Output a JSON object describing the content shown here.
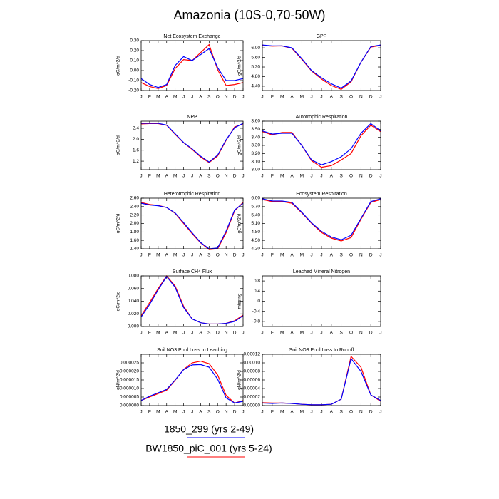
{
  "title": "Amazonia (10S-0,70-50W)",
  "chart_data": [
    {
      "type": "line",
      "title": "Net Ecosystem Exchange",
      "ylabel": "gC/m^2/d",
      "categories": [
        "J",
        "F",
        "M",
        "A",
        "M",
        "J",
        "J",
        "A",
        "S",
        "O",
        "N",
        "D",
        "J"
      ],
      "ylim": [
        -0.2,
        0.3
      ],
      "yticks": [
        {
          "value": -0.2,
          "label": "-0.20"
        },
        {
          "value": -0.1,
          "label": "-0.10"
        },
        {
          "value": 0,
          "label": "0.00"
        },
        {
          "value": 0.1,
          "label": "0.10"
        },
        {
          "value": 0.2,
          "label": "0.20"
        },
        {
          "value": 0.3,
          "label": "0.30"
        }
      ],
      "series": [
        {
          "name": "1850_299 (yrs 2-49)",
          "color": "#0000ff",
          "values": [
            -0.08,
            -0.14,
            -0.17,
            -0.14,
            0.05,
            0.14,
            0.1,
            0.16,
            0.22,
            0.03,
            -0.1,
            -0.1,
            -0.08
          ]
        },
        {
          "name": "BW1850_piC_001 (yrs 5-24)",
          "color": "#ff0000",
          "values": [
            -0.12,
            -0.16,
            -0.18,
            -0.15,
            0.02,
            0.11,
            0.1,
            0.18,
            0.26,
            0.01,
            -0.15,
            -0.14,
            -0.12
          ]
        }
      ]
    },
    {
      "type": "line",
      "title": "GPP",
      "ylabel": "gC/m^2/d",
      "categories": [
        "J",
        "F",
        "M",
        "A",
        "M",
        "J",
        "J",
        "A",
        "S",
        "O",
        "N",
        "D",
        "J"
      ],
      "ylim": [
        4.22,
        6.3
      ],
      "yticks": [
        {
          "value": 4.4,
          "label": "4.40"
        },
        {
          "value": 4.8,
          "label": "4.80"
        },
        {
          "value": 5.2,
          "label": "5.20"
        },
        {
          "value": 5.6,
          "label": "5.60"
        },
        {
          "value": 6,
          "label": "6.00"
        }
      ],
      "series": [
        {
          "name": "1850_299 (yrs 2-49)",
          "color": "#0000ff",
          "values": [
            6.12,
            6.08,
            6.08,
            6.0,
            5.55,
            5.05,
            4.75,
            4.5,
            4.32,
            4.62,
            5.4,
            6.05,
            6.12
          ]
        },
        {
          "name": "BW1850_piC_001 (yrs 5-24)",
          "color": "#ff0000",
          "values": [
            6.1,
            6.07,
            6.08,
            5.98,
            5.52,
            5.03,
            4.7,
            4.43,
            4.27,
            4.58,
            5.4,
            6.03,
            6.1
          ]
        }
      ]
    },
    {
      "type": "line",
      "title": "NPP",
      "ylabel": "gC/m^2/d",
      "categories": [
        "J",
        "F",
        "M",
        "A",
        "M",
        "J",
        "J",
        "A",
        "S",
        "O",
        "N",
        "D",
        "J"
      ],
      "ylim": [
        0.89,
        2.66
      ],
      "yticks": [
        1.2,
        1.6,
        {
          "value": 2,
          "label": "2.0"
        },
        2.4
      ],
      "series": [
        {
          "name": "1850_299 (yrs 2-49)",
          "color": "#0000ff",
          "values": [
            2.58,
            2.58,
            2.58,
            2.52,
            2.2,
            1.88,
            1.65,
            1.38,
            1.17,
            1.42,
            1.98,
            2.42,
            2.58
          ]
        },
        {
          "name": "BW1850_piC_001 (yrs 5-24)",
          "color": "#ff0000",
          "values": [
            2.56,
            2.57,
            2.57,
            2.51,
            2.18,
            1.87,
            1.63,
            1.35,
            1.15,
            1.39,
            1.96,
            2.45,
            2.56
          ]
        }
      ]
    },
    {
      "type": "line",
      "title": "Autotrophic Respiration",
      "ylabel": "gC/m^2/d",
      "categories": [
        "J",
        "F",
        "M",
        "A",
        "M",
        "J",
        "J",
        "A",
        "S",
        "O",
        "N",
        "D",
        "J"
      ],
      "ylim": [
        3.0,
        3.6
      ],
      "yticks": [
        {
          "value": 3,
          "label": "3.00"
        },
        {
          "value": 3.1,
          "label": "3.10"
        },
        {
          "value": 3.2,
          "label": "3.20"
        },
        {
          "value": 3.3,
          "label": "3.30"
        },
        {
          "value": 3.4,
          "label": "3.40"
        },
        {
          "value": 3.5,
          "label": "3.50"
        },
        {
          "value": 3.6,
          "label": "3.60"
        }
      ],
      "series": [
        {
          "name": "1850_299 (yrs 2-49)",
          "color": "#0000ff",
          "values": [
            3.48,
            3.44,
            3.45,
            3.45,
            3.3,
            3.12,
            3.06,
            3.1,
            3.16,
            3.26,
            3.45,
            3.57,
            3.48
          ]
        },
        {
          "name": "BW1850_piC_001 (yrs 5-24)",
          "color": "#ff0000",
          "values": [
            3.47,
            3.43,
            3.46,
            3.46,
            3.3,
            3.11,
            3.03,
            3.05,
            3.12,
            3.2,
            3.42,
            3.55,
            3.47
          ]
        }
      ]
    },
    {
      "type": "line",
      "title": "Heterotrophic Respiration",
      "ylabel": "gC/m^2/d",
      "categories": [
        "J",
        "F",
        "M",
        "A",
        "M",
        "J",
        "J",
        "A",
        "S",
        "O",
        "N",
        "D",
        "J"
      ],
      "ylim": [
        1.4,
        2.6
      ],
      "yticks": [
        {
          "value": 1.4,
          "label": "1.40"
        },
        {
          "value": 1.6,
          "label": "1.60"
        },
        {
          "value": 1.8,
          "label": "1.80"
        },
        {
          "value": 2,
          "label": "2.00"
        },
        {
          "value": 2.2,
          "label": "2.20"
        },
        {
          "value": 2.4,
          "label": "2.40"
        },
        {
          "value": 2.6,
          "label": "2.60"
        }
      ],
      "series": [
        {
          "name": "1850_299 (yrs 2-49)",
          "color": "#0000ff",
          "values": [
            2.48,
            2.44,
            2.42,
            2.38,
            2.25,
            2.02,
            1.78,
            1.55,
            1.4,
            1.42,
            1.82,
            2.32,
            2.48
          ]
        },
        {
          "name": "BW1850_piC_001 (yrs 5-24)",
          "color": "#ff0000",
          "values": [
            2.5,
            2.45,
            2.43,
            2.38,
            2.24,
            2.0,
            1.76,
            1.54,
            1.38,
            1.4,
            1.78,
            2.3,
            2.5
          ]
        }
      ]
    },
    {
      "type": "line",
      "title": "Ecosystem Respiration",
      "ylabel": "gC/m^2/d",
      "categories": [
        "J",
        "F",
        "M",
        "A",
        "M",
        "J",
        "J",
        "A",
        "S",
        "O",
        "N",
        "D",
        "J"
      ],
      "ylim": [
        4.2,
        6.0
      ],
      "yticks": [
        {
          "value": 4.2,
          "label": "4.20"
        },
        {
          "value": 4.5,
          "label": "4.50"
        },
        {
          "value": 4.8,
          "label": "4.80"
        },
        {
          "value": 5.1,
          "label": "5.10"
        },
        {
          "value": 5.4,
          "label": "5.40"
        },
        {
          "value": 5.7,
          "label": "5.70"
        },
        {
          "value": 6,
          "label": "6.00"
        }
      ],
      "series": [
        {
          "name": "1850_299 (yrs 2-49)",
          "color": "#0000ff",
          "values": [
            5.98,
            5.9,
            5.9,
            5.85,
            5.5,
            5.12,
            4.82,
            4.62,
            4.52,
            4.68,
            5.28,
            5.88,
            5.98
          ]
        },
        {
          "name": "BW1850_piC_001 (yrs 5-24)",
          "color": "#ff0000",
          "values": [
            5.95,
            5.88,
            5.88,
            5.82,
            5.48,
            5.1,
            4.78,
            4.58,
            4.48,
            4.6,
            5.25,
            5.85,
            5.95
          ]
        }
      ]
    },
    {
      "type": "line",
      "title": "Surface CH4 Flux",
      "ylabel": "gC/m^2/d",
      "categories": [
        "J",
        "F",
        "M",
        "A",
        "M",
        "J",
        "J",
        "A",
        "S",
        "O",
        "N",
        "D",
        "J"
      ],
      "ylim": [
        0,
        0.08
      ],
      "yticks": [
        {
          "value": 0,
          "label": "0.000"
        },
        {
          "value": 0.02,
          "label": "0.020"
        },
        {
          "value": 0.04,
          "label": "0.040"
        },
        {
          "value": 0.06,
          "label": "0.060"
        },
        {
          "value": 0.08,
          "label": "0.080"
        }
      ],
      "series": [
        {
          "name": "1850_299 (yrs 2-49)",
          "color": "#0000ff",
          "values": [
            0.015,
            0.035,
            0.058,
            0.079,
            0.062,
            0.03,
            0.012,
            0.006,
            0.004,
            0.004,
            0.005,
            0.008,
            0.017
          ]
        },
        {
          "name": "BW1850_piC_001 (yrs 5-24)",
          "color": "#ff0000",
          "values": [
            0.017,
            0.038,
            0.06,
            0.08,
            0.064,
            0.032,
            0.012,
            0.006,
            0.004,
            0.004,
            0.005,
            0.009,
            0.018
          ]
        }
      ]
    },
    {
      "type": "line",
      "title": "Leached Mineral Nitrogen",
      "ylabel": "missing",
      "categories": [
        "J",
        "F",
        "M",
        "A",
        "M",
        "J",
        "J",
        "A",
        "S",
        "O",
        "N",
        "D",
        "J"
      ],
      "ylim": [
        -1,
        1
      ],
      "yticks": [
        -0.8,
        -0.4,
        0,
        0.4,
        0.8
      ],
      "series": []
    },
    {
      "type": "line",
      "title": "Soil NO3 Pool Loss to Leaching",
      "ylabel": "gN/m^2/d",
      "categories": [
        "J",
        "F",
        "M",
        "A",
        "M",
        "J",
        "J",
        "A",
        "S",
        "O",
        "N",
        "D",
        "J"
      ],
      "ylim": [
        0,
        3e-05
      ],
      "yticks": [
        {
          "value": 0,
          "label": "0.000000"
        },
        {
          "value": 5e-06,
          "label": "0.000005"
        },
        {
          "value": 1e-05,
          "label": "0.000010"
        },
        {
          "value": 1.5e-05,
          "label": "0.000015"
        },
        {
          "value": 2e-05,
          "label": "0.000020"
        },
        {
          "value": 2.5e-05,
          "label": "0.000025"
        }
      ],
      "series": [
        {
          "name": "1850_299 (yrs 2-49)",
          "color": "#0000ff",
          "values": [
            3e-06,
            5.5e-06,
            7.5e-06,
            9.5e-06,
            1.5e-05,
            2.1e-05,
            2.38e-05,
            2.4e-05,
            2.25e-05,
            1.55e-05,
            4.5e-06,
            1.5e-06,
            2.5e-06
          ]
        },
        {
          "name": "BW1850_piC_001 (yrs 5-24)",
          "color": "#ff0000",
          "values": [
            3e-06,
            5e-06,
            7e-06,
            9e-06,
            1.48e-05,
            2.12e-05,
            2.5e-05,
            2.6e-05,
            2.45e-05,
            1.8e-05,
            6e-06,
            1.5e-06,
            3e-06
          ]
        }
      ]
    },
    {
      "type": "line",
      "title": "Soil NO3 Pool Loss to Runoff",
      "ylabel": "gN/m^2/d",
      "categories": [
        "J",
        "F",
        "M",
        "A",
        "M",
        "J",
        "J",
        "A",
        "S",
        "O",
        "N",
        "D",
        "J"
      ],
      "ylim": [
        0,
        0.00012
      ],
      "yticks": [
        {
          "value": 0,
          "label": "0.00000"
        },
        {
          "value": 2e-05,
          "label": "0.00002"
        },
        {
          "value": 4e-05,
          "label": "0.00004"
        },
        {
          "value": 6e-05,
          "label": "0.00006"
        },
        {
          "value": 8e-05,
          "label": "0.00008"
        },
        {
          "value": 0.0001,
          "label": "0.00010"
        },
        {
          "value": 0.00012,
          "label": "0.00012"
        }
      ],
      "series": [
        {
          "name": "1850_299 (yrs 2-49)",
          "color": "#0000ff",
          "values": [
            6e-06,
            5e-06,
            6e-06,
            5e-06,
            3e-06,
            2e-06,
            2e-06,
            3e-06,
            1.5e-05,
            0.00011,
            8e-05,
            2.5e-05,
            1.2e-05
          ]
        },
        {
          "name": "BW1850_piC_001 (yrs 5-24)",
          "color": "#ff0000",
          "values": [
            7e-06,
            6e-06,
            6e-06,
            5e-06,
            3e-06,
            2e-06,
            2e-06,
            3e-06,
            1.5e-05,
            0.000115,
            9e-05,
            2.5e-05,
            1e-05
          ]
        }
      ]
    }
  ]
}
